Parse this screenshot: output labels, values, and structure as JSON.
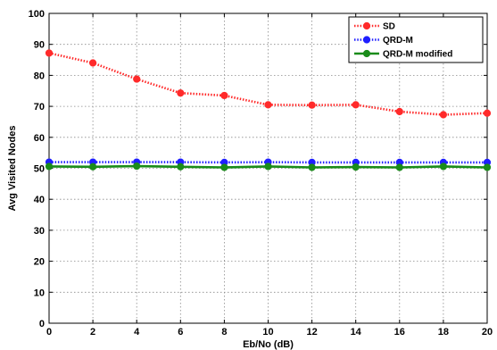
{
  "chart_data": {
    "type": "line",
    "title": "",
    "xlabel": "Eb/No (dB)",
    "ylabel": "Avg Visited Nodes",
    "xlim": [
      0,
      20
    ],
    "ylim": [
      0,
      100
    ],
    "x_ticks": [
      0,
      2,
      4,
      6,
      8,
      10,
      12,
      14,
      16,
      18,
      20
    ],
    "y_ticks": [
      0,
      10,
      20,
      30,
      40,
      50,
      60,
      70,
      80,
      90,
      100
    ],
    "x_tick_labels": [
      "0",
      "2",
      "4",
      "6",
      "8",
      "10",
      "12",
      "14",
      "16",
      "18",
      "20"
    ],
    "y_tick_labels": [
      "0",
      "10",
      "20",
      "30",
      "40",
      "50",
      "60",
      "70",
      "80",
      "90",
      "100"
    ],
    "grid": true,
    "legend_position": "top-right",
    "x": [
      0,
      2,
      4,
      6,
      8,
      10,
      12,
      14,
      16,
      18,
      20
    ],
    "series": [
      {
        "name": "SD",
        "color": "#ff2a2a",
        "line_style": "dotted",
        "marker": "circle",
        "values": [
          87.2,
          84.0,
          78.8,
          74.3,
          73.5,
          70.5,
          70.4,
          70.5,
          68.3,
          67.3,
          67.8
        ]
      },
      {
        "name": "QRD-M",
        "color": "#1f1fff",
        "line_style": "dotted",
        "marker": "circle",
        "values": [
          52.0,
          52.0,
          52.0,
          52.0,
          51.9,
          52.0,
          51.9,
          51.9,
          51.9,
          51.9,
          51.9
        ]
      },
      {
        "name": "QRD-M modified",
        "color": "#1a8c1a",
        "line_style": "solid",
        "marker": "circle",
        "values": [
          50.6,
          50.5,
          50.7,
          50.5,
          50.3,
          50.6,
          50.3,
          50.4,
          50.3,
          50.6,
          50.3
        ]
      }
    ]
  }
}
